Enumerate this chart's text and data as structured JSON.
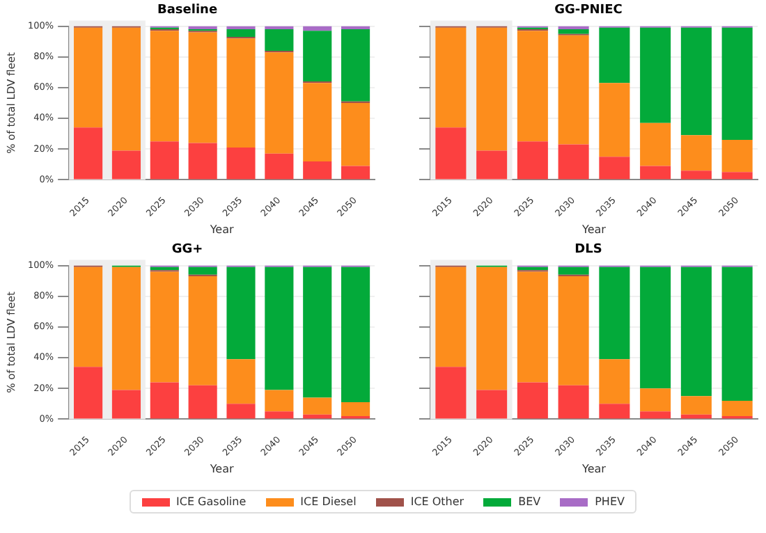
{
  "chart_data": [
    {
      "type": "bar",
      "title": "Baseline",
      "xlabel": "Year",
      "ylabel": "% of total LDV fleet",
      "stacked": true,
      "grid": "y",
      "legend": "bottom",
      "categories": [
        "2015",
        "2020",
        "2025",
        "2030",
        "2035",
        "2040",
        "2045",
        "2050"
      ],
      "ylim": [
        0,
        100
      ],
      "yticks": [
        {
          "value": 0,
          "label": "0%"
        },
        {
          "value": 20,
          "label": "20%"
        },
        {
          "value": 40,
          "label": "40%"
        },
        {
          "value": 60,
          "label": "60%"
        },
        {
          "value": 80,
          "label": "80%"
        },
        {
          "value": 100,
          "label": "100%"
        }
      ],
      "bands": [
        {
          "axis": "x",
          "from": "2015",
          "to": "2020",
          "color": "#eeeeee"
        }
      ],
      "series": [
        {
          "name": "ICE Gasoline",
          "color": "#fc4040",
          "values": [
            34,
            19,
            25,
            24,
            21,
            17,
            12,
            9
          ]
        },
        {
          "name": "ICE Diesel",
          "color": "#fd8d1c",
          "values": [
            65,
            80,
            72,
            72,
            71,
            66,
            51,
            41
          ]
        },
        {
          "name": "ICE Other",
          "color": "#a0524a",
          "values": [
            1,
            1,
            1,
            1,
            1,
            1,
            1,
            1
          ]
        },
        {
          "name": "BEV",
          "color": "#03aa3a",
          "values": [
            0,
            0,
            1,
            1,
            5,
            14,
            33,
            47
          ]
        },
        {
          "name": "PHEV",
          "color": "#a86cc6",
          "values": [
            0,
            0,
            1,
            2,
            2,
            2,
            3,
            2
          ]
        }
      ]
    },
    {
      "type": "bar",
      "title": "GG-PNIEC",
      "xlabel": "Year",
      "stacked": true,
      "grid": "y",
      "legend": "bottom",
      "tick_labels": "x",
      "categories": [
        "2015",
        "2020",
        "2025",
        "2030",
        "2035",
        "2040",
        "2045",
        "2050"
      ],
      "ylim": [
        0,
        100
      ],
      "yticks": [
        {
          "value": 0,
          "label": null
        },
        {
          "value": 20,
          "label": null
        },
        {
          "value": 40,
          "label": null
        },
        {
          "value": 60,
          "label": null
        },
        {
          "value": 80,
          "label": null
        },
        {
          "value": 100,
          "label": null
        }
      ],
      "bands": [
        {
          "axis": "x",
          "from": "2015",
          "to": "2020",
          "color": "#eeeeee"
        }
      ],
      "series": [
        {
          "name": "ICE Gasoline",
          "color": "#fc4040",
          "values": [
            34,
            19,
            25,
            23,
            15,
            9,
            6,
            5
          ]
        },
        {
          "name": "ICE Diesel",
          "color": "#fd8d1c",
          "values": [
            65,
            80,
            72,
            71,
            48,
            28,
            23,
            21
          ]
        },
        {
          "name": "ICE Other",
          "color": "#a0524a",
          "values": [
            1,
            1,
            1,
            1,
            0,
            0,
            0,
            0
          ]
        },
        {
          "name": "BEV",
          "color": "#03aa3a",
          "values": [
            0,
            0,
            1,
            3,
            36,
            62,
            70,
            73
          ]
        },
        {
          "name": "PHEV",
          "color": "#a86cc6",
          "values": [
            0,
            0,
            1,
            2,
            1,
            1,
            1,
            1
          ]
        }
      ]
    },
    {
      "type": "bar",
      "title": "GG+",
      "xlabel": "Year",
      "ylabel": "% of total LDV fleet",
      "stacked": true,
      "grid": "y",
      "legend": "bottom",
      "categories": [
        "2015",
        "2020",
        "2025",
        "2030",
        "2035",
        "2040",
        "2045",
        "2050"
      ],
      "ylim": [
        0,
        100
      ],
      "yticks": [
        {
          "value": 0,
          "label": "0%"
        },
        {
          "value": 20,
          "label": "20%"
        },
        {
          "value": 40,
          "label": "40%"
        },
        {
          "value": 60,
          "label": "60%"
        },
        {
          "value": 80,
          "label": "80%"
        },
        {
          "value": 100,
          "label": "100%"
        }
      ],
      "bands": [
        {
          "axis": "x",
          "from": "2015",
          "to": "2020",
          "color": "#eeeeee"
        }
      ],
      "series": [
        {
          "name": "ICE Gasoline",
          "color": "#fc4040",
          "values": [
            34,
            19,
            24,
            22,
            10,
            5,
            3,
            2
          ]
        },
        {
          "name": "ICE Diesel",
          "color": "#fd8d1c",
          "values": [
            65,
            80,
            72,
            71,
            29,
            14,
            11,
            9
          ]
        },
        {
          "name": "ICE Other",
          "color": "#a0524a",
          "values": [
            1,
            0,
            1,
            1,
            0,
            0,
            0,
            0
          ]
        },
        {
          "name": "BEV",
          "color": "#03aa3a",
          "values": [
            0,
            1,
            2,
            5,
            60,
            80,
            85,
            88
          ]
        },
        {
          "name": "PHEV",
          "color": "#a86cc6",
          "values": [
            0,
            0,
            1,
            1,
            1,
            1,
            1,
            1
          ]
        }
      ]
    },
    {
      "type": "bar",
      "title": "DLS",
      "xlabel": "Year",
      "stacked": true,
      "grid": "y",
      "legend": "bottom",
      "tick_labels": "x",
      "categories": [
        "2015",
        "2020",
        "2025",
        "2030",
        "2035",
        "2040",
        "2045",
        "2050"
      ],
      "ylim": [
        0,
        100
      ],
      "yticks": [
        {
          "value": 0,
          "label": null
        },
        {
          "value": 20,
          "label": null
        },
        {
          "value": 40,
          "label": null
        },
        {
          "value": 60,
          "label": null
        },
        {
          "value": 80,
          "label": null
        },
        {
          "value": 100,
          "label": null
        }
      ],
      "bands": [
        {
          "axis": "x",
          "from": "2015",
          "to": "2020",
          "color": "#eeeeee"
        }
      ],
      "series": [
        {
          "name": "ICE Gasoline",
          "color": "#fc4040",
          "values": [
            34,
            19,
            24,
            22,
            10,
            5,
            3,
            2
          ]
        },
        {
          "name": "ICE Diesel",
          "color": "#fd8d1c",
          "values": [
            65,
            80,
            72,
            71,
            29,
            15,
            12,
            10
          ]
        },
        {
          "name": "ICE Other",
          "color": "#a0524a",
          "values": [
            1,
            0,
            1,
            1,
            0,
            0,
            0,
            0
          ]
        },
        {
          "name": "BEV",
          "color": "#03aa3a",
          "values": [
            0,
            1,
            2,
            5,
            60,
            79,
            84,
            87
          ]
        },
        {
          "name": "PHEV",
          "color": "#a86cc6",
          "values": [
            0,
            0,
            1,
            1,
            1,
            1,
            1,
            1
          ]
        }
      ]
    }
  ]
}
